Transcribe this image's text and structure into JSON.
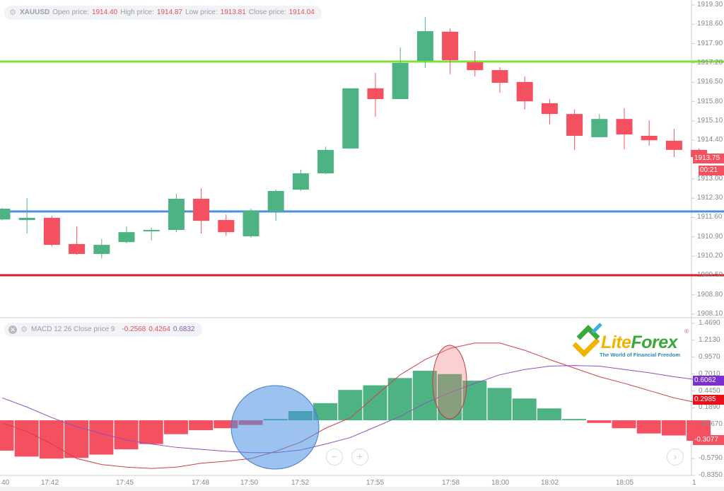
{
  "price_legend": {
    "symbol": "XAUUSD",
    "open_label": "Open price:",
    "open": "1914.40",
    "high_label": "High price:",
    "high": "1914.87",
    "low_label": "Low price:",
    "low": "1913.81",
    "close_label": "Close price:",
    "close": "1914.04"
  },
  "macd_legend": {
    "title": "MACD 12 26 Close price 9",
    "v1": "-0.2568",
    "v2": "0.4264",
    "v3": "0.6832"
  },
  "logo": {
    "name_a": "Lite",
    "name_b": "Forex",
    "reg": "®",
    "tagline": "The World of Financial Freedom"
  },
  "price_axis": [
    "1919.30",
    "1918.60",
    "1917.90",
    "1917.20",
    "1916.50",
    "1915.80",
    "1915.10",
    "1914.40",
    "1913.00",
    "1912.30",
    "1911.60",
    "1910.90",
    "1910.20",
    "1909.50",
    "1908.80",
    "1908.10"
  ],
  "price_tags": {
    "last_price": "1913.75",
    "countdown": "00:21"
  },
  "macd_axis": [
    "1.4690",
    "1.2130",
    "0.9570",
    "0.7010",
    "0.4450",
    "0.1890",
    "-0.0670",
    "-0.5790",
    "-0.8350"
  ],
  "macd_tags": {
    "signal": "0.6062",
    "macd": "0.2985",
    "hist": "-0.3077"
  },
  "time_axis": [
    "40",
    "17:42",
    "17:45",
    "17:48",
    "17:50",
    "17:52",
    "17:55",
    "17:58",
    "18:00",
    "18:02",
    "18:05",
    "1"
  ],
  "zoom_controls": {
    "zoom_out": "−",
    "zoom_in": "+",
    "scroll_right": "›"
  },
  "colors": {
    "up": "#4db383",
    "down": "#f4505f",
    "green_level": "#7ee03a",
    "blue_level": "#4a90e2",
    "red_level": "#d81b2c",
    "macd_line": "#d0404a",
    "signal_line": "#9050c0",
    "signal_tag": "#7b2fd0",
    "macd_tag": "#e8101e"
  },
  "chart_data": {
    "type": "candlestick",
    "price_range": [
      1908.1,
      1919.3
    ],
    "candles": [
      {
        "o": 1911.53,
        "h": 1911.95,
        "l": 1911.5,
        "c": 1911.92
      },
      {
        "o": 1911.51,
        "h": 1912.3,
        "l": 1911.02,
        "c": 1911.59
      },
      {
        "o": 1911.59,
        "h": 1911.66,
        "l": 1910.56,
        "c": 1910.61
      },
      {
        "o": 1910.64,
        "h": 1911.28,
        "l": 1910.25,
        "c": 1910.28
      },
      {
        "o": 1910.28,
        "h": 1910.82,
        "l": 1910.12,
        "c": 1910.61
      },
      {
        "o": 1910.71,
        "h": 1911.28,
        "l": 1910.66,
        "c": 1911.07
      },
      {
        "o": 1911.1,
        "h": 1911.23,
        "l": 1910.77,
        "c": 1911.15
      },
      {
        "o": 1911.15,
        "h": 1912.46,
        "l": 1911.07,
        "c": 1912.28
      },
      {
        "o": 1912.28,
        "h": 1912.66,
        "l": 1911.02,
        "c": 1911.48
      },
      {
        "o": 1911.51,
        "h": 1911.71,
        "l": 1910.94,
        "c": 1911.07
      },
      {
        "o": 1910.92,
        "h": 1911.92,
        "l": 1910.87,
        "c": 1911.84
      },
      {
        "o": 1911.82,
        "h": 1912.61,
        "l": 1911.48,
        "c": 1912.56
      },
      {
        "o": 1912.61,
        "h": 1913.33,
        "l": 1912.56,
        "c": 1913.2
      },
      {
        "o": 1913.2,
        "h": 1914.17,
        "l": 1913.17,
        "c": 1914.05
      },
      {
        "o": 1914.1,
        "h": 1916.28,
        "l": 1914.1,
        "c": 1916.28
      },
      {
        "o": 1916.28,
        "h": 1916.84,
        "l": 1915.25,
        "c": 1915.89
      },
      {
        "o": 1915.89,
        "h": 1917.76,
        "l": 1915.89,
        "c": 1917.2
      },
      {
        "o": 1917.28,
        "h": 1918.86,
        "l": 1917.02,
        "c": 1918.35
      },
      {
        "o": 1918.33,
        "h": 1918.45,
        "l": 1916.79,
        "c": 1917.3
      },
      {
        "o": 1917.22,
        "h": 1917.63,
        "l": 1916.71,
        "c": 1916.94
      },
      {
        "o": 1916.94,
        "h": 1917.04,
        "l": 1916.12,
        "c": 1916.48
      },
      {
        "o": 1916.51,
        "h": 1916.71,
        "l": 1915.51,
        "c": 1915.81
      },
      {
        "o": 1915.74,
        "h": 1915.89,
        "l": 1914.97,
        "c": 1915.35
      },
      {
        "o": 1915.35,
        "h": 1915.51,
        "l": 1914.05,
        "c": 1914.56
      },
      {
        "o": 1914.51,
        "h": 1915.35,
        "l": 1914.51,
        "c": 1915.17
      },
      {
        "o": 1915.17,
        "h": 1915.56,
        "l": 1914.07,
        "c": 1914.61
      },
      {
        "o": 1914.56,
        "h": 1915.12,
        "l": 1914.2,
        "c": 1914.4
      },
      {
        "o": 1914.38,
        "h": 1914.81,
        "l": 1913.79,
        "c": 1914.05
      },
      {
        "o": 1914.05,
        "h": 1914.1,
        "l": 1913.79,
        "c": 1913.79
      }
    ],
    "levels": [
      {
        "price": 1917.25,
        "color": "green"
      },
      {
        "price": 1911.82,
        "color": "blue"
      },
      {
        "price": 1909.51,
        "color": "red"
      }
    ],
    "macd": {
      "range": [
        -0.835,
        1.469
      ],
      "histogram": [
        -0.46,
        -0.55,
        -0.58,
        -0.57,
        -0.52,
        -0.44,
        -0.36,
        -0.21,
        -0.15,
        -0.12,
        -0.07,
        0.02,
        0.14,
        0.26,
        0.46,
        0.53,
        0.64,
        0.75,
        0.7,
        0.6,
        0.49,
        0.33,
        0.18,
        0.02,
        -0.04,
        -0.12,
        -0.2,
        -0.23,
        -0.31
      ],
      "macd_line": [
        -0.04,
        -0.17,
        -0.36,
        -0.58,
        -0.67,
        -0.71,
        -0.73,
        -0.71,
        -0.65,
        -0.62,
        -0.58,
        -0.47,
        -0.33,
        -0.12,
        0.04,
        0.37,
        0.69,
        0.92,
        1.09,
        1.17,
        1.17,
        1.06,
        0.92,
        0.79,
        0.66,
        0.56,
        0.45,
        0.34,
        0.26
      ],
      "signal_line": [
        0.34,
        0.2,
        0.04,
        -0.1,
        -0.2,
        -0.3,
        -0.36,
        -0.41,
        -0.44,
        -0.47,
        -0.49,
        -0.49,
        -0.45,
        -0.36,
        -0.26,
        -0.1,
        0.06,
        0.26,
        0.42,
        0.56,
        0.69,
        0.77,
        0.82,
        0.83,
        0.82,
        0.77,
        0.72,
        0.66,
        0.61
      ]
    }
  }
}
